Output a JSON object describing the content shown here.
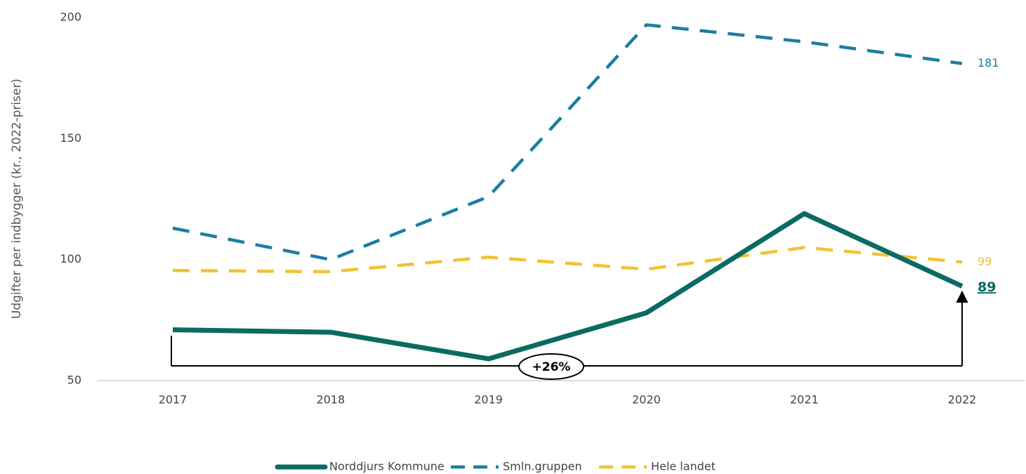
{
  "chart_data": {
    "type": "line",
    "y_label": "Udgifter per indbygger (kr., 2022-priser)",
    "categories": [
      "2017",
      "2018",
      "2019",
      "2020",
      "2021",
      "2022"
    ],
    "series": [
      {
        "name": "Norddjurs Kommune",
        "color": "#0b6b63",
        "values": [
          71,
          70,
          59,
          78,
          119,
          89
        ]
      },
      {
        "name": "Smln.gruppen",
        "color": "#1a7fa0",
        "values": [
          113,
          100,
          126,
          197,
          190,
          181
        ]
      },
      {
        "name": "Hele landet",
        "color": "#f0c330",
        "values": [
          95.5,
          95,
          101,
          96,
          105,
          99
        ]
      }
    ],
    "ylim": [
      50,
      200
    ],
    "yticks": [
      50,
      100,
      150,
      200
    ],
    "annotation": "+26%",
    "legend": "bottom"
  }
}
